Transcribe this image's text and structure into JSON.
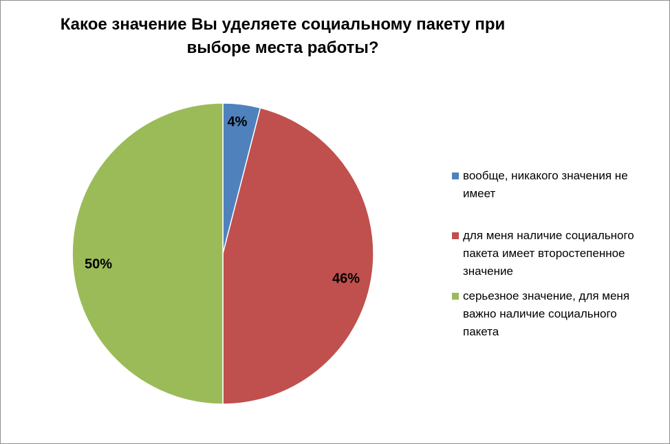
{
  "chart_data": {
    "type": "pie",
    "title_lines": [
      "Какое значение Вы уделяете социальному пакету при",
      "выборе места работы?"
    ],
    "slices": [
      {
        "label": "вообще, никакого значения не имеет",
        "legend_lines": [
          "вообще, никакого значения не",
          "имеет"
        ],
        "value": 4,
        "data_label": "4%",
        "color": "#4f81bd"
      },
      {
        "label": "для меня наличие социального пакета имеет второстепенное значение",
        "legend_lines": [
          "для меня наличие социального",
          "пакета имеет второстепенное",
          "значение"
        ],
        "value": 46,
        "data_label": "46%",
        "color": "#c0504d"
      },
      {
        "label": "серьезное значение, для меня важно наличие социального пакета",
        "legend_lines": [
          "серьезное значение, для меня",
          "важно наличие социального",
          "пакета"
        ],
        "value": 50,
        "data_label": "50%",
        "color": "#9bbb59"
      }
    ],
    "legend_position": "right"
  }
}
